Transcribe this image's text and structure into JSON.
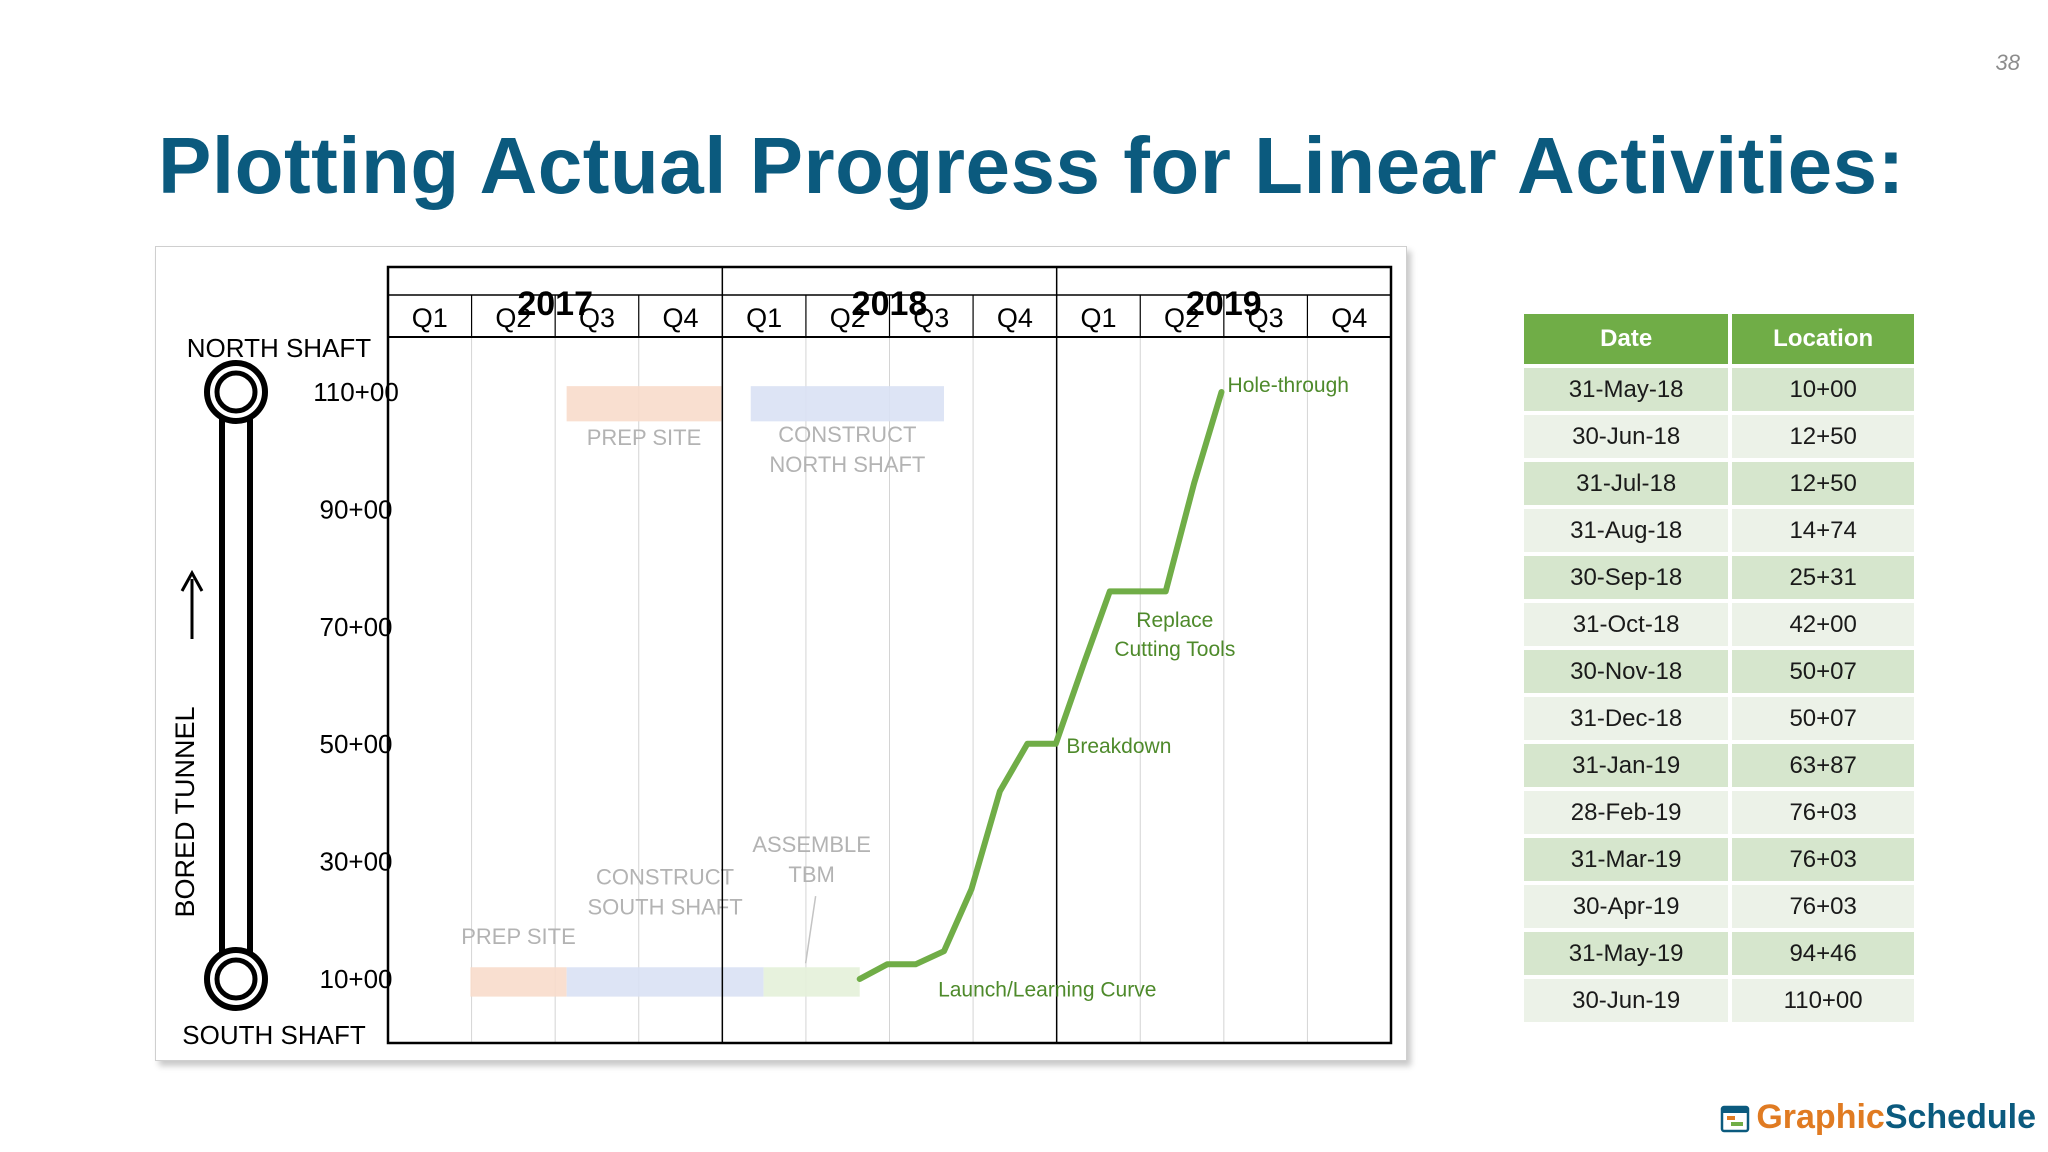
{
  "page_number": "38",
  "title": "Plotting Actual Progress for Linear Activities:",
  "colors": {
    "title": "#0b5a7e",
    "progress_line": "#70ad47",
    "table_header": "#70ad47",
    "prep_site": "#f8dccb",
    "construct_shaft": "#d9e1f4",
    "assemble_tbm": "#e4f1d9"
  },
  "chart_data": {
    "type": "line",
    "years": [
      "2017",
      "2018",
      "2019"
    ],
    "quarters": [
      "Q1",
      "Q2",
      "Q3",
      "Q4",
      "Q1",
      "Q2",
      "Q3",
      "Q4",
      "Q1",
      "Q2",
      "Q3",
      "Q4"
    ],
    "y_ticks": [
      "110+00",
      "90+00",
      "70+00",
      "50+00",
      "30+00",
      "10+00"
    ],
    "y_tick_values": [
      110,
      90,
      70,
      50,
      30,
      10
    ],
    "ylim": [
      10,
      110
    ],
    "xlim": [
      "2017-01-01",
      "2020-01-01"
    ],
    "ylabel": "BORED TUNNEL",
    "top_label": "NORTH SHAFT",
    "bottom_label": "SOUTH SHAFT",
    "series": [
      {
        "x": [
          "2018-05-31",
          "2018-06-30",
          "2018-07-31",
          "2018-08-31",
          "2018-09-30",
          "2018-10-31",
          "2018-11-30",
          "2018-12-31",
          "2019-01-31",
          "2019-02-28",
          "2019-03-31",
          "2019-04-30",
          "2019-05-31",
          "2019-06-30"
        ],
        "y": [
          10.0,
          12.5,
          12.5,
          14.74,
          25.31,
          42.0,
          50.07,
          50.07,
          63.87,
          76.03,
          76.03,
          76.03,
          94.46,
          110.0
        ]
      }
    ],
    "activities": [
      {
        "label_lines": [
          "PREP SITE"
        ],
        "start": "2017-04-01",
        "end": "2017-07-15",
        "y_from": 7,
        "y_to": 12,
        "kind": "prep_site",
        "label_y": 16
      },
      {
        "label_lines": [
          "CONSTRUCT",
          "SOUTH SHAFT"
        ],
        "start": "2017-07-15",
        "end": "2018-02-15",
        "y_from": 7,
        "y_to": 12,
        "kind": "construct_shaft",
        "label_y": 21
      },
      {
        "label_lines": [
          "ASSEMBLE",
          "TBM"
        ],
        "start": "2018-02-15",
        "end": "2018-05-31",
        "y_from": 7,
        "y_to": 12,
        "kind": "assemble_tbm",
        "label_y": 26.5
      },
      {
        "label_lines": [
          "PREP SITE"
        ],
        "start": "2017-07-15",
        "end": "2017-12-31",
        "y_from": 105,
        "y_to": 111,
        "kind": "prep_site",
        "label_y": 101
      },
      {
        "label_lines": [
          "CONSTRUCT",
          "NORTH SHAFT"
        ],
        "start": "2018-02-01",
        "end": "2018-08-31",
        "y_from": 105,
        "y_to": 111,
        "kind": "construct_shaft",
        "label_y": 101.5
      }
    ],
    "annotations": [
      {
        "text": "Hole-through",
        "x": "2019-06-30",
        "y": 110,
        "anchor": "start"
      },
      {
        "text": "Replace",
        "x": "2019-05-10",
        "y": 70,
        "anchor": "middle"
      },
      {
        "text": "Cutting Tools",
        "x": "2019-05-10",
        "y": 65,
        "anchor": "middle"
      },
      {
        "text": "Breakdown",
        "x": "2019-01-05",
        "y": 48.5,
        "anchor": "start"
      },
      {
        "text": "Launch/Learning Curve",
        "x": "2018-08-18",
        "y": 7,
        "anchor": "start"
      }
    ]
  },
  "table": {
    "headers": [
      "Date",
      "Location"
    ],
    "rows": [
      [
        "31-May-18",
        "10+00"
      ],
      [
        "30-Jun-18",
        "12+50"
      ],
      [
        "31-Jul-18",
        "12+50"
      ],
      [
        "31-Aug-18",
        "14+74"
      ],
      [
        "30-Sep-18",
        "25+31"
      ],
      [
        "31-Oct-18",
        "42+00"
      ],
      [
        "30-Nov-18",
        "50+07"
      ],
      [
        "31-Dec-18",
        "50+07"
      ],
      [
        "31-Jan-19",
        "63+87"
      ],
      [
        "28-Feb-19",
        "76+03"
      ],
      [
        "31-Mar-19",
        "76+03"
      ],
      [
        "30-Apr-19",
        "76+03"
      ],
      [
        "31-May-19",
        "94+46"
      ],
      [
        "30-Jun-19",
        "110+00"
      ]
    ]
  },
  "logo": {
    "part1": "Graphic",
    "part2": "Schedule",
    "icon": "calendar-chart-icon"
  }
}
